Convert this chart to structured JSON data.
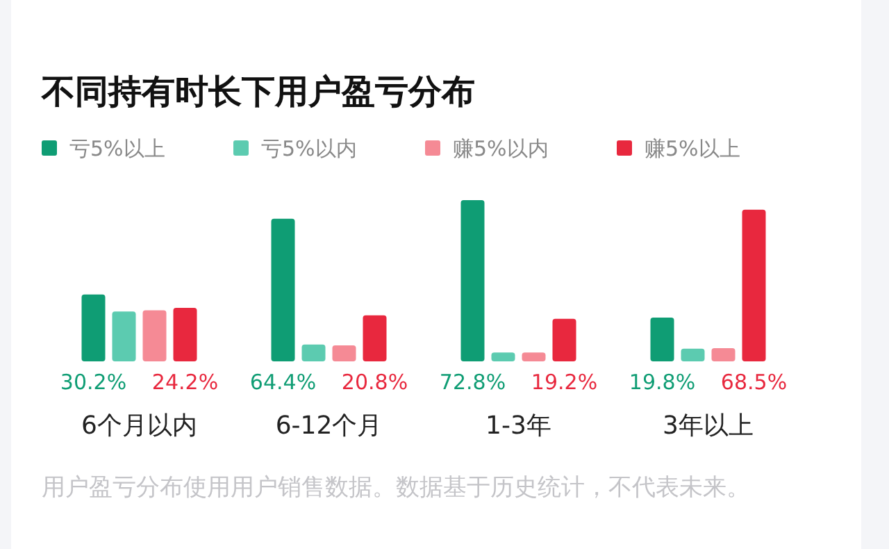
{
  "chart_data": {
    "type": "bar",
    "title": "不同持有时长下用户盈亏分布",
    "categories": [
      "6个月以内",
      "6-12个月",
      "1-3年",
      "3年以上"
    ],
    "series": [
      {
        "name": "亏5%以上",
        "color": "#0f9d74",
        "values": [
          30.2,
          64.4,
          72.8,
          19.8
        ],
        "value_labels": [
          "30.2%",
          "64.4%",
          "72.8%",
          "19.8%"
        ]
      },
      {
        "name": "亏5%以内",
        "color": "#5ccbb0",
        "values": [
          22.5,
          7.6,
          4,
          5.7
        ]
      },
      {
        "name": "赚5%以内",
        "color": "#f58a95",
        "values": [
          23.1,
          7.2,
          4,
          6
        ]
      },
      {
        "name": "赚5%以上",
        "color": "#e8283e",
        "values": [
          24.2,
          20.8,
          19.2,
          68.5
        ],
        "value_labels": [
          "24.2%",
          "20.8%",
          "19.2%",
          "68.5%"
        ]
      }
    ],
    "legend": "top left",
    "annotations": [
      "用户盈亏分布使用用户销售数据。数据基于历史统计，不代表未来。"
    ]
  }
}
